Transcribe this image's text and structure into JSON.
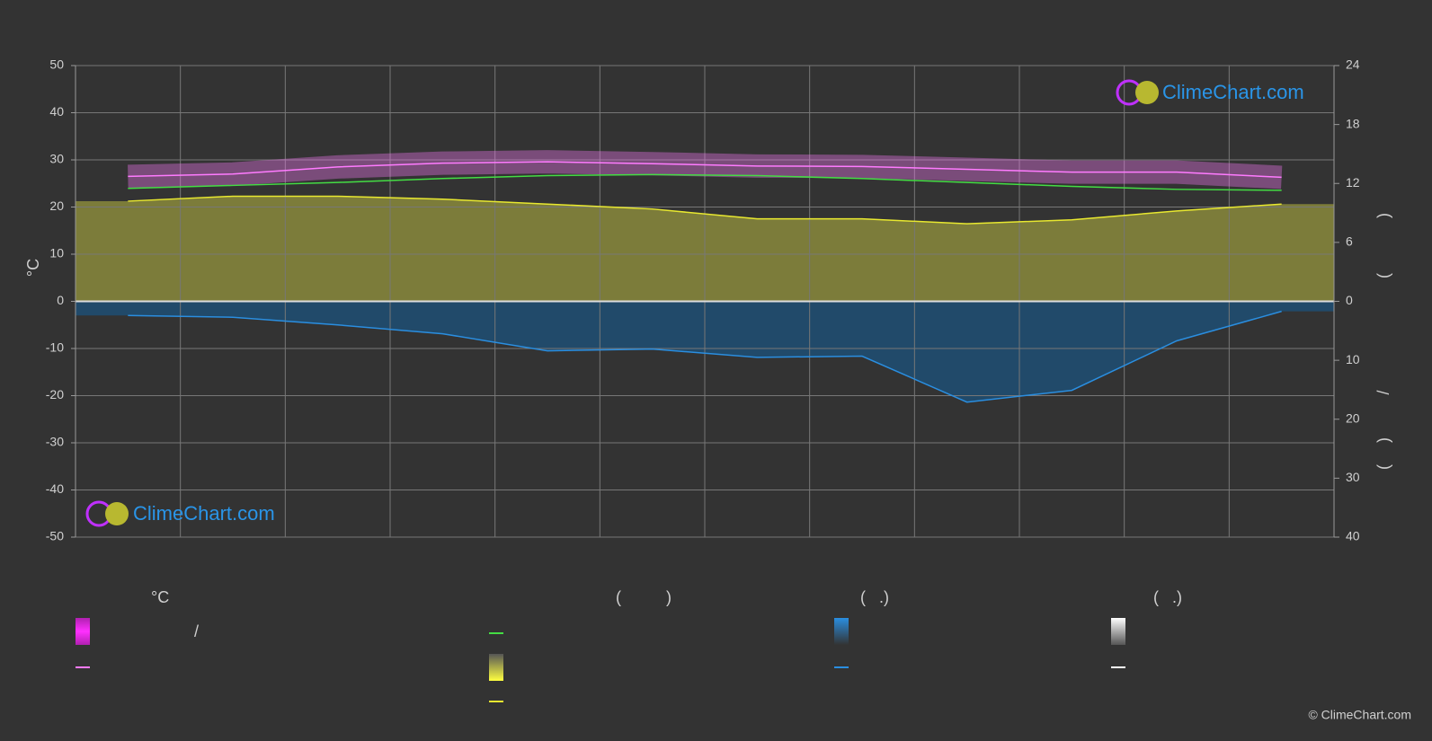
{
  "chart_data": {
    "type": "line",
    "y_label": "°C",
    "categories": [
      null,
      null,
      null,
      null,
      null,
      null,
      null,
      null,
      null,
      null,
      null,
      null
    ],
    "ylim": [
      -50,
      50
    ],
    "yticks": [
      -50,
      -40,
      -30,
      -20,
      -10,
      0,
      10,
      20,
      30,
      40,
      50
    ],
    "y2lim": [
      -24,
      24
    ],
    "y2ticks": [
      0,
      6,
      12,
      18,
      24
    ],
    "y3lim": [
      40,
      -40
    ],
    "y3ticks": [
      10,
      20,
      30,
      40
    ],
    "y2_label_parts": [
      ")",
      "(",
      "/",
      ")",
      "("
    ],
    "grid": true,
    "series": [
      {
        "color": "#ff7bff",
        "axis": "y",
        "values": [
          26.5,
          27.0,
          28.5,
          29.3,
          29.6,
          29.2,
          28.7,
          28.6,
          28.0,
          27.4,
          27.4,
          26.3
        ]
      },
      {
        "color": "#44dd44",
        "axis": "y2",
        "values": [
          11.5,
          11.8,
          12.1,
          12.5,
          12.8,
          12.9,
          12.8,
          12.5,
          12.1,
          11.7,
          11.4,
          11.3
        ]
      },
      {
        "color": "#e8e830",
        "axis": "y2",
        "fill": "#8a8a3c",
        "values": [
          10.2,
          10.7,
          10.7,
          10.4,
          9.9,
          9.4,
          8.4,
          8.4,
          7.9,
          8.3,
          9.2,
          9.9
        ]
      },
      {
        "color": "#2a8ee0",
        "axis": "y3",
        "fill": "#1f4f74",
        "values": [
          2.4,
          2.7,
          4.0,
          5.5,
          8.4,
          8.1,
          9.5,
          9.3,
          17.1,
          15.1,
          6.7,
          1.7
        ]
      }
    ],
    "legend": {
      "headers": [
        "°C",
        "(          )",
        "(   .)",
        "(   .)"
      ],
      "slash": "/"
    },
    "logo": "ClimeChart.com",
    "copyright": "© ClimeChart.com"
  }
}
